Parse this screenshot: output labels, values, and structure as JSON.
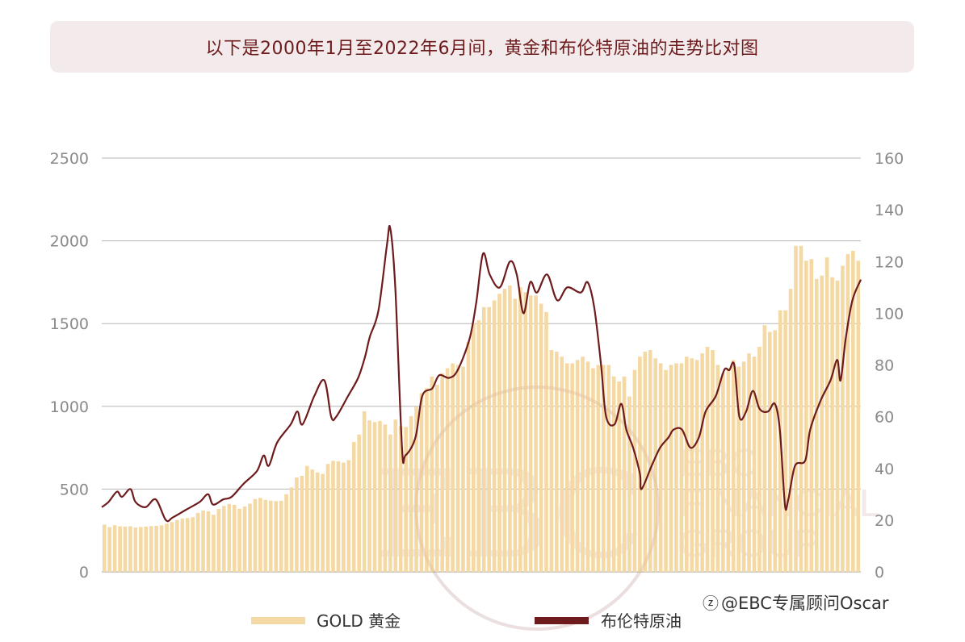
{
  "title": "以下是2000年1月至2022年6月间，黄金和布伦特原油的走势比对图",
  "watermark": {
    "logo_letters": "EBC",
    "logo_text_1": "EBC",
    "logo_text_2": "FINANCIAL",
    "logo_text_3": "GROUP",
    "credit": "@EBC专属顾问Oscar"
  },
  "colors": {
    "gold": "#f5d9a4",
    "oil": "#6e1b1d",
    "grid": "#b5b5b5",
    "title_bg": "#f3ebeb"
  },
  "chart_data": {
    "type": "bar+line",
    "legend_position": "bottom",
    "grid": true,
    "left_axis": {
      "min": 0,
      "max": 2500,
      "ticks": [
        "0",
        "500",
        "1000",
        "1500",
        "2000",
        "2500"
      ]
    },
    "right_axis": {
      "min": 0,
      "max": 160,
      "ticks": [
        "0",
        "20",
        "40",
        "60",
        "80",
        "100",
        "120",
        "140",
        "160"
      ]
    },
    "series": [
      {
        "name": "GOLD 黄金",
        "kind": "bar",
        "axis": "left",
        "values": [
          285,
          270,
          282,
          275,
          273,
          275,
          268,
          271,
          273,
          276,
          278,
          281,
          291,
          301,
          313,
          322,
          325,
          330,
          356,
          370,
          366,
          345,
          380,
          398,
          410,
          405,
          381,
          395,
          412,
          440,
          447,
          435,
          430,
          427,
          429,
          469,
          510,
          570,
          580,
          640,
          618,
          600,
          592,
          652,
          671,
          668,
          660,
          675,
          785,
          830,
          970,
          915,
          905,
          912,
          890,
          830,
          920,
          880,
          875,
          940,
          1000,
          1080,
          1110,
          1180,
          1130,
          1200,
          1230,
          1260,
          1250,
          1240,
          1390,
          1500,
          1520,
          1600,
          1600,
          1640,
          1680,
          1710,
          1730,
          1650,
          1720,
          1690,
          1670,
          1670,
          1620,
          1570,
          1340,
          1330,
          1300,
          1260,
          1260,
          1280,
          1300,
          1270,
          1230,
          1250,
          1250,
          1250,
          1180,
          1150,
          1180,
          1060,
          1220,
          1300,
          1330,
          1340,
          1290,
          1260,
          1220,
          1250,
          1260,
          1260,
          1300,
          1290,
          1280,
          1320,
          1360,
          1340,
          1250,
          1200,
          1230,
          1280,
          1240,
          1270,
          1320,
          1300,
          1360,
          1490,
          1450,
          1460,
          1580,
          1580,
          1710,
          1970,
          1970,
          1880,
          1890,
          1770,
          1790,
          1900,
          1780,
          1760,
          1850,
          1920,
          1940,
          1880
        ]
      },
      {
        "name": "布伦特原油",
        "kind": "line",
        "axis": "right",
        "points": [
          [
            2000.0,
            25
          ],
          [
            2000.2,
            27
          ],
          [
            2000.45,
            31
          ],
          [
            2000.6,
            29
          ],
          [
            2000.85,
            32
          ],
          [
            2001.0,
            27
          ],
          [
            2001.3,
            25
          ],
          [
            2001.6,
            28
          ],
          [
            2001.9,
            20
          ],
          [
            2002.1,
            21
          ],
          [
            2002.5,
            24
          ],
          [
            2002.9,
            27
          ],
          [
            2003.15,
            30
          ],
          [
            2003.3,
            26
          ],
          [
            2003.6,
            28
          ],
          [
            2003.85,
            29
          ],
          [
            2004.2,
            34
          ],
          [
            2004.6,
            39
          ],
          [
            2004.8,
            45
          ],
          [
            2004.95,
            41
          ],
          [
            2005.2,
            50
          ],
          [
            2005.6,
            57
          ],
          [
            2005.8,
            62
          ],
          [
            2005.95,
            57
          ],
          [
            2006.3,
            68
          ],
          [
            2006.6,
            74
          ],
          [
            2006.8,
            60
          ],
          [
            2006.95,
            60
          ],
          [
            2007.3,
            68
          ],
          [
            2007.6,
            75
          ],
          [
            2007.8,
            83
          ],
          [
            2007.95,
            91
          ],
          [
            2008.2,
            101
          ],
          [
            2008.45,
            126
          ],
          [
            2008.55,
            133
          ],
          [
            2008.7,
            110
          ],
          [
            2008.9,
            48
          ],
          [
            2009.0,
            45
          ],
          [
            2009.3,
            52
          ],
          [
            2009.5,
            68
          ],
          [
            2009.8,
            71
          ],
          [
            2010.0,
            76
          ],
          [
            2010.3,
            75
          ],
          [
            2010.55,
            78
          ],
          [
            2010.9,
            90
          ],
          [
            2011.1,
            104
          ],
          [
            2011.3,
            123
          ],
          [
            2011.5,
            115
          ],
          [
            2011.8,
            110
          ],
          [
            2012.1,
            120
          ],
          [
            2012.3,
            115
          ],
          [
            2012.5,
            100
          ],
          [
            2012.7,
            112
          ],
          [
            2012.9,
            108
          ],
          [
            2013.2,
            115
          ],
          [
            2013.5,
            105
          ],
          [
            2013.8,
            110
          ],
          [
            2014.2,
            108
          ],
          [
            2014.4,
            112
          ],
          [
            2014.6,
            102
          ],
          [
            2014.8,
            80
          ],
          [
            2014.95,
            60
          ],
          [
            2015.2,
            57
          ],
          [
            2015.4,
            65
          ],
          [
            2015.55,
            55
          ],
          [
            2015.75,
            48
          ],
          [
            2015.95,
            38
          ],
          [
            2016.0,
            32
          ],
          [
            2016.3,
            41
          ],
          [
            2016.55,
            48
          ],
          [
            2016.8,
            52
          ],
          [
            2016.95,
            55
          ],
          [
            2017.2,
            55
          ],
          [
            2017.45,
            48
          ],
          [
            2017.7,
            52
          ],
          [
            2017.9,
            62
          ],
          [
            2018.2,
            68
          ],
          [
            2018.45,
            78
          ],
          [
            2018.6,
            78
          ],
          [
            2018.75,
            80
          ],
          [
            2018.9,
            60
          ],
          [
            2019.1,
            62
          ],
          [
            2019.3,
            70
          ],
          [
            2019.5,
            63
          ],
          [
            2019.75,
            62
          ],
          [
            2019.95,
            65
          ],
          [
            2020.1,
            55
          ],
          [
            2020.25,
            26
          ],
          [
            2020.35,
            28
          ],
          [
            2020.55,
            41
          ],
          [
            2020.85,
            43
          ],
          [
            2021.0,
            55
          ],
          [
            2021.3,
            66
          ],
          [
            2021.6,
            74
          ],
          [
            2021.8,
            82
          ],
          [
            2021.9,
            74
          ],
          [
            2022.05,
            90
          ],
          [
            2022.25,
            105
          ],
          [
            2022.5,
            113
          ]
        ]
      }
    ]
  }
}
